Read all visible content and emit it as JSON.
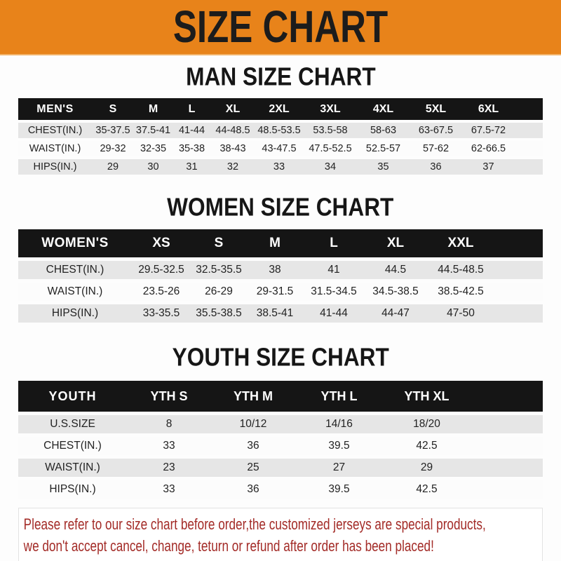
{
  "banner": {
    "title": "SIZE CHART"
  },
  "sections": [
    {
      "heading": "MAN SIZE CHART",
      "table": {
        "header_label": "MEN'S",
        "columns": [
          "S",
          "M",
          "L",
          "XL",
          "2XL",
          "3XL",
          "4XL",
          "5XL",
          "6XL"
        ],
        "rows": [
          {
            "label": "CHEST(IN.)",
            "values": [
              "35-37.5",
              "37.5-41",
              "41-44",
              "44-48.5",
              "48.5-53.5",
              "53.5-58",
              "58-63",
              "63-67.5",
              "67.5-72"
            ]
          },
          {
            "label": "WAIST(IN.)",
            "values": [
              "29-32",
              "32-35",
              "35-38",
              "38-43",
              "43-47.5",
              "47.5-52.5",
              "52.5-57",
              "57-62",
              "62-66.5"
            ]
          },
          {
            "label": "HIPS(IN.)",
            "values": [
              "29",
              "30",
              "31",
              "32",
              "33",
              "34",
              "35",
              "36",
              "37"
            ]
          }
        ]
      }
    },
    {
      "heading": "WOMEN SIZE CHART",
      "table": {
        "header_label": "WOMEN'S",
        "columns": [
          "XS",
          "S",
          "M",
          "L",
          "XL",
          "XXL"
        ],
        "rows": [
          {
            "label": "CHEST(IN.)",
            "values": [
              "29.5-32.5",
              "32.5-35.5",
              "38",
              "41",
              "44.5",
              "44.5-48.5"
            ]
          },
          {
            "label": "WAIST(IN.)",
            "values": [
              "23.5-26",
              "26-29",
              "29-31.5",
              "31.5-34.5",
              "34.5-38.5",
              "38.5-42.5"
            ]
          },
          {
            "label": "HIPS(IN.)",
            "values": [
              "33-35.5",
              "35.5-38.5",
              "38.5-41",
              "41-44",
              "44-47",
              "47-50"
            ]
          }
        ]
      }
    },
    {
      "heading": "YOUTH SIZE CHART",
      "table": {
        "header_label": "YOUTH",
        "columns": [
          "YTH S",
          "YTH M",
          "YTH L",
          "YTH XL"
        ],
        "rows": [
          {
            "label": "U.S.SIZE",
            "values": [
              "8",
              "10/12",
              "14/16",
              "18/20"
            ]
          },
          {
            "label": "CHEST(IN.)",
            "values": [
              "33",
              "36",
              "39.5",
              "42.5"
            ]
          },
          {
            "label": "WAIST(IN.)",
            "values": [
              "23",
              "25",
              "27",
              "29"
            ]
          },
          {
            "label": "HIPS(IN.)",
            "values": [
              "33",
              "36",
              "39.5",
              "42.5"
            ]
          }
        ]
      }
    }
  ],
  "disclaimer": {
    "lines": [
      "Please refer to our size chart before order,the customized jerseys are special products,",
      "we don't accept cancel, change, teturn or refund after order has been placed!"
    ]
  },
  "colors": {
    "orange": "#E8831A",
    "bar": "#151515",
    "row-gray": "#E6E6E6",
    "red": "#A32B27"
  }
}
